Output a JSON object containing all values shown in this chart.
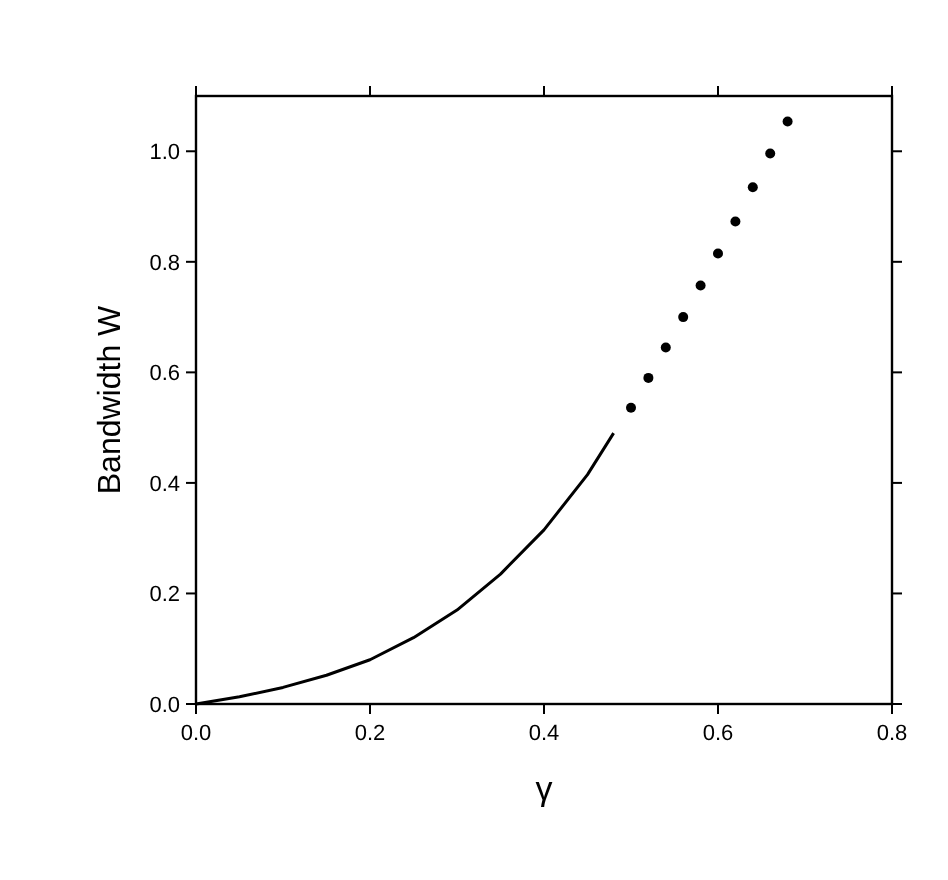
{
  "chart_data": {
    "type": "line",
    "xlabel": "γ",
    "ylabel": "Bandwidth W",
    "xlim": [
      0,
      0.8
    ],
    "ylim": [
      0,
      1.1
    ],
    "xticks": [
      {
        "value": 0,
        "label": "0.0"
      },
      {
        "value": 0.2,
        "label": "0.2"
      },
      {
        "value": 0.4,
        "label": "0.4"
      },
      {
        "value": 0.6,
        "label": "0.6"
      },
      {
        "value": 0.8,
        "label": "0.8"
      }
    ],
    "yticks": [
      {
        "value": 0,
        "label": "0.0"
      },
      {
        "value": 0.2,
        "label": "0.2"
      },
      {
        "value": 0.4,
        "label": "0.4"
      },
      {
        "value": 0.6,
        "label": "0.6"
      },
      {
        "value": 0.8,
        "label": "0.8"
      },
      {
        "value": 1,
        "label": "1.0"
      }
    ],
    "grid": false,
    "series": [
      {
        "color": "#000000",
        "marker": "none",
        "line_style": "solid",
        "x": [
          0,
          0.05,
          0.1,
          0.15,
          0.2,
          0.25,
          0.3,
          0.35,
          0.4,
          0.45,
          0.48
        ],
        "values": [
          0,
          0.013,
          0.03,
          0.052,
          0.08,
          0.12,
          0.17,
          0.235,
          0.315,
          0.415,
          0.49
        ]
      },
      {
        "type": "scatter",
        "color": "#000000",
        "marker": "circle",
        "x": [
          0.5,
          0.52,
          0.54,
          0.56,
          0.58,
          0.6,
          0.62,
          0.64,
          0.66,
          0.68
        ],
        "values": [
          0.536,
          0.59,
          0.645,
          0.7,
          0.757,
          0.815,
          0.873,
          0.935,
          0.996,
          1.054
        ]
      }
    ]
  }
}
